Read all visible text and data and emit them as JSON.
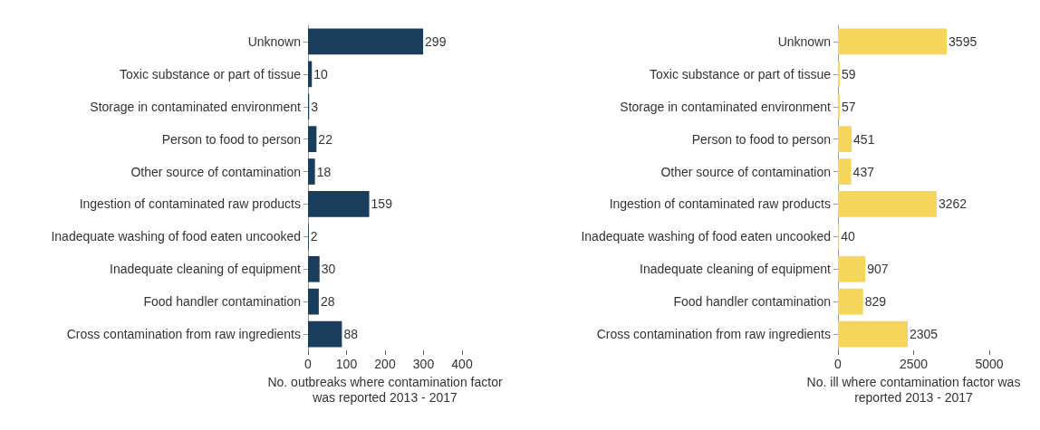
{
  "chart_data": [
    {
      "type": "bar",
      "orientation": "horizontal",
      "xlabel": "No. outbreaks where contamination factor was reported 2013 - 2017",
      "categories": [
        "Unknown",
        "Toxic substance or part of tissue",
        "Storage in contaminated environment",
        "Person to food to person",
        "Other source of contamination",
        "Ingestion of contaminated raw products",
        "Inadequate washing of food eaten uncooked",
        "Inadequate cleaning of equipment",
        "Food handler contamination",
        "Cross contamination from raw ingredients"
      ],
      "values": [
        299,
        10,
        3,
        22,
        18,
        159,
        2,
        30,
        28,
        88
      ],
      "color": "#1a3d5c",
      "xlim": [
        0,
        400
      ],
      "xticks": [
        0,
        100,
        200,
        300,
        400
      ],
      "data_labels": true,
      "grid": false
    },
    {
      "type": "bar",
      "orientation": "horizontal",
      "xlabel": "No. ill where contamination factor was reported 2013 - 2017",
      "categories": [
        "Unknown",
        "Toxic substance or part of tissue",
        "Storage in contaminated environment",
        "Person to food to person",
        "Other source of contamination",
        "Ingestion of contaminated raw products",
        "Inadequate washing of food eaten uncooked",
        "Inadequate cleaning of equipment",
        "Food handler contamination",
        "Cross contamination from raw ingredients"
      ],
      "values": [
        3595,
        59,
        57,
        451,
        437,
        3262,
        40,
        907,
        829,
        2305
      ],
      "color": "#f5d55a",
      "xlim": [
        0,
        5000
      ],
      "xticks": [
        0,
        2500,
        5000
      ],
      "data_labels": true,
      "grid": false
    }
  ]
}
